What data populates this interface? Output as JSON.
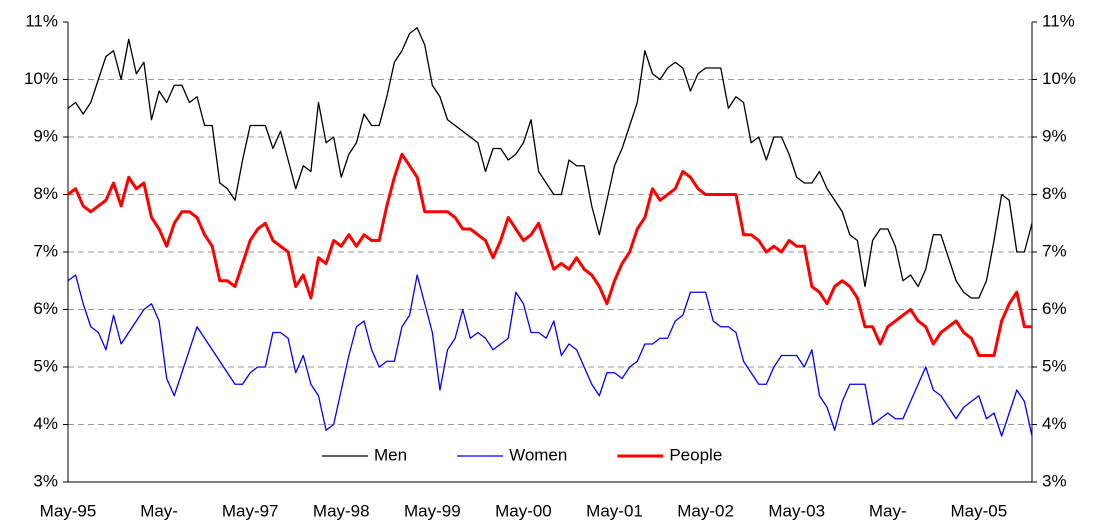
{
  "chart_data": {
    "type": "line",
    "categories": [
      "May-95",
      null,
      null,
      null,
      null,
      null,
      null,
      null,
      null,
      null,
      null,
      null,
      "May-",
      null,
      null,
      null,
      null,
      null,
      null,
      null,
      null,
      null,
      null,
      null,
      "May-97",
      null,
      null,
      null,
      null,
      null,
      null,
      null,
      null,
      null,
      null,
      null,
      "May-98",
      null,
      null,
      null,
      null,
      null,
      null,
      null,
      null,
      null,
      null,
      null,
      "May-99",
      null,
      null,
      null,
      null,
      null,
      null,
      null,
      null,
      null,
      null,
      null,
      "May-00",
      null,
      null,
      null,
      null,
      null,
      null,
      null,
      null,
      null,
      null,
      null,
      "May-01",
      null,
      null,
      null,
      null,
      null,
      null,
      null,
      null,
      null,
      null,
      null,
      "May-02",
      null,
      null,
      null,
      null,
      null,
      null,
      null,
      null,
      null,
      null,
      null,
      "May-03",
      null,
      null,
      null,
      null,
      null,
      null,
      null,
      null,
      null,
      null,
      null,
      "May-",
      null,
      null,
      null,
      null,
      null,
      null,
      null,
      null,
      null,
      null,
      null,
      "May-05",
      null,
      null,
      null,
      null,
      null,
      null,
      null
    ],
    "series": [
      {
        "name": "Men",
        "color": "#000000",
        "width": 1.3,
        "values": [
          9.5,
          9.6,
          9.4,
          9.6,
          10.0,
          10.4,
          10.5,
          10.0,
          10.7,
          10.1,
          10.3,
          9.3,
          9.8,
          9.6,
          9.9,
          9.9,
          9.6,
          9.7,
          9.2,
          9.2,
          8.2,
          8.1,
          7.9,
          8.6,
          9.2,
          9.2,
          9.2,
          8.8,
          9.1,
          8.6,
          8.1,
          8.5,
          8.4,
          9.6,
          8.9,
          9.0,
          8.3,
          8.7,
          8.9,
          9.4,
          9.2,
          9.2,
          9.7,
          10.3,
          10.5,
          10.8,
          10.9,
          10.6,
          9.9,
          9.7,
          9.3,
          9.2,
          9.1,
          9.0,
          8.9,
          8.4,
          8.8,
          8.8,
          8.6,
          8.7,
          8.9,
          9.3,
          8.4,
          8.2,
          8.0,
          8.0,
          8.6,
          8.5,
          8.5,
          7.8,
          7.3,
          7.9,
          8.5,
          8.8,
          9.2,
          9.6,
          10.5,
          10.1,
          10.0,
          10.2,
          10.3,
          10.2,
          9.8,
          10.1,
          10.2,
          10.2,
          10.2,
          9.5,
          9.7,
          9.6,
          8.9,
          9.0,
          8.6,
          9.0,
          9.0,
          8.7,
          8.3,
          8.2,
          8.2,
          8.4,
          8.1,
          7.9,
          7.7,
          7.3,
          7.2,
          6.4,
          7.2,
          7.4,
          7.4,
          7.1,
          6.5,
          6.6,
          6.4,
          6.7,
          7.3,
          7.3,
          6.9,
          6.5,
          6.3,
          6.2,
          6.2,
          6.5,
          7.2,
          8.0,
          7.9,
          7.0,
          7.0,
          7.5
        ]
      },
      {
        "name": "Women",
        "color": "#0000ff",
        "width": 1.3,
        "values": [
          6.5,
          6.6,
          6.1,
          5.7,
          5.6,
          5.3,
          5.9,
          5.4,
          5.6,
          5.8,
          6.0,
          6.1,
          5.8,
          4.8,
          4.5,
          4.9,
          5.3,
          5.7,
          5.5,
          5.3,
          5.1,
          4.9,
          4.7,
          4.7,
          4.9,
          5.0,
          5.0,
          5.6,
          5.6,
          5.5,
          4.9,
          5.2,
          4.7,
          4.5,
          3.9,
          4.0,
          4.6,
          5.2,
          5.7,
          5.8,
          5.3,
          5.0,
          5.1,
          5.1,
          5.7,
          5.9,
          6.6,
          6.1,
          5.6,
          4.6,
          5.3,
          5.5,
          6.0,
          5.5,
          5.6,
          5.5,
          5.3,
          5.4,
          5.5,
          6.3,
          6.1,
          5.6,
          5.6,
          5.5,
          5.8,
          5.2,
          5.4,
          5.3,
          5.0,
          4.7,
          4.5,
          4.9,
          4.9,
          4.8,
          5.0,
          5.1,
          5.4,
          5.4,
          5.5,
          5.5,
          5.8,
          5.9,
          6.3,
          6.3,
          6.3,
          5.8,
          5.7,
          5.7,
          5.6,
          5.1,
          4.9,
          4.7,
          4.7,
          5.0,
          5.2,
          5.2,
          5.2,
          5.0,
          5.3,
          4.5,
          4.3,
          3.9,
          4.4,
          4.7,
          4.7,
          4.7,
          4.0,
          4.1,
          4.2,
          4.1,
          4.1,
          4.4,
          4.7,
          5.0,
          4.6,
          4.5,
          4.3,
          4.1,
          4.3,
          4.4,
          4.5,
          4.1,
          4.2,
          3.8,
          4.2,
          4.6,
          4.4,
          3.8
        ]
      },
      {
        "name": "People",
        "color": "#ff0000",
        "width": 3,
        "values": [
          8.0,
          8.1,
          7.8,
          7.7,
          7.8,
          7.9,
          8.2,
          7.8,
          8.3,
          8.1,
          8.2,
          7.6,
          7.4,
          7.1,
          7.5,
          7.7,
          7.7,
          7.6,
          7.3,
          7.1,
          6.5,
          6.5,
          6.4,
          6.8,
          7.2,
          7.4,
          7.5,
          7.2,
          7.1,
          7.0,
          6.4,
          6.6,
          6.2,
          6.9,
          6.8,
          7.2,
          7.1,
          7.3,
          7.1,
          7.3,
          7.2,
          7.2,
          7.8,
          8.3,
          8.7,
          8.5,
          8.3,
          7.7,
          7.7,
          7.7,
          7.7,
          7.6,
          7.4,
          7.4,
          7.3,
          7.2,
          6.9,
          7.2,
          7.6,
          7.4,
          7.2,
          7.3,
          7.5,
          7.1,
          6.7,
          6.8,
          6.7,
          6.9,
          6.7,
          6.6,
          6.4,
          6.1,
          6.5,
          6.8,
          7.0,
          7.4,
          7.6,
          8.1,
          7.9,
          8.0,
          8.1,
          8.4,
          8.3,
          8.1,
          8.0,
          8.0,
          8.0,
          8.0,
          8.0,
          7.3,
          7.3,
          7.2,
          7.0,
          7.1,
          7.0,
          7.2,
          7.1,
          7.1,
          6.4,
          6.3,
          6.1,
          6.4,
          6.5,
          6.4,
          6.2,
          5.7,
          5.7,
          5.4,
          5.7,
          5.8,
          5.9,
          6.0,
          5.8,
          5.7,
          5.4,
          5.6,
          5.7,
          5.8,
          5.6,
          5.5,
          5.2,
          5.2,
          5.2,
          5.8,
          6.1,
          6.3,
          5.7,
          5.7
        ]
      }
    ],
    "ylim": [
      3,
      11
    ],
    "yticks": [
      {
        "value": 3,
        "label": "3%"
      },
      {
        "value": 4,
        "label": "4%"
      },
      {
        "value": 5,
        "label": "5%"
      },
      {
        "value": 6,
        "label": "6%"
      },
      {
        "value": 7,
        "label": "7%"
      },
      {
        "value": 8,
        "label": "8%"
      },
      {
        "value": 9,
        "label": "9%"
      },
      {
        "value": 10,
        "label": "10%"
      },
      {
        "value": 11,
        "label": "11%"
      }
    ],
    "y2lim": [
      3,
      11
    ],
    "y2ticks": [
      {
        "value": 3,
        "label": "3%"
      },
      {
        "value": 4,
        "label": "4%"
      },
      {
        "value": 5,
        "label": "5%"
      },
      {
        "value": 6,
        "label": "6%"
      },
      {
        "value": 7,
        "label": "7%"
      },
      {
        "value": 8,
        "label": "8%"
      },
      {
        "value": 9,
        "label": "9%"
      },
      {
        "value": 10,
        "label": "10%"
      },
      {
        "value": 11,
        "label": "11%"
      }
    ],
    "grid": true,
    "legend": "bottom"
  }
}
